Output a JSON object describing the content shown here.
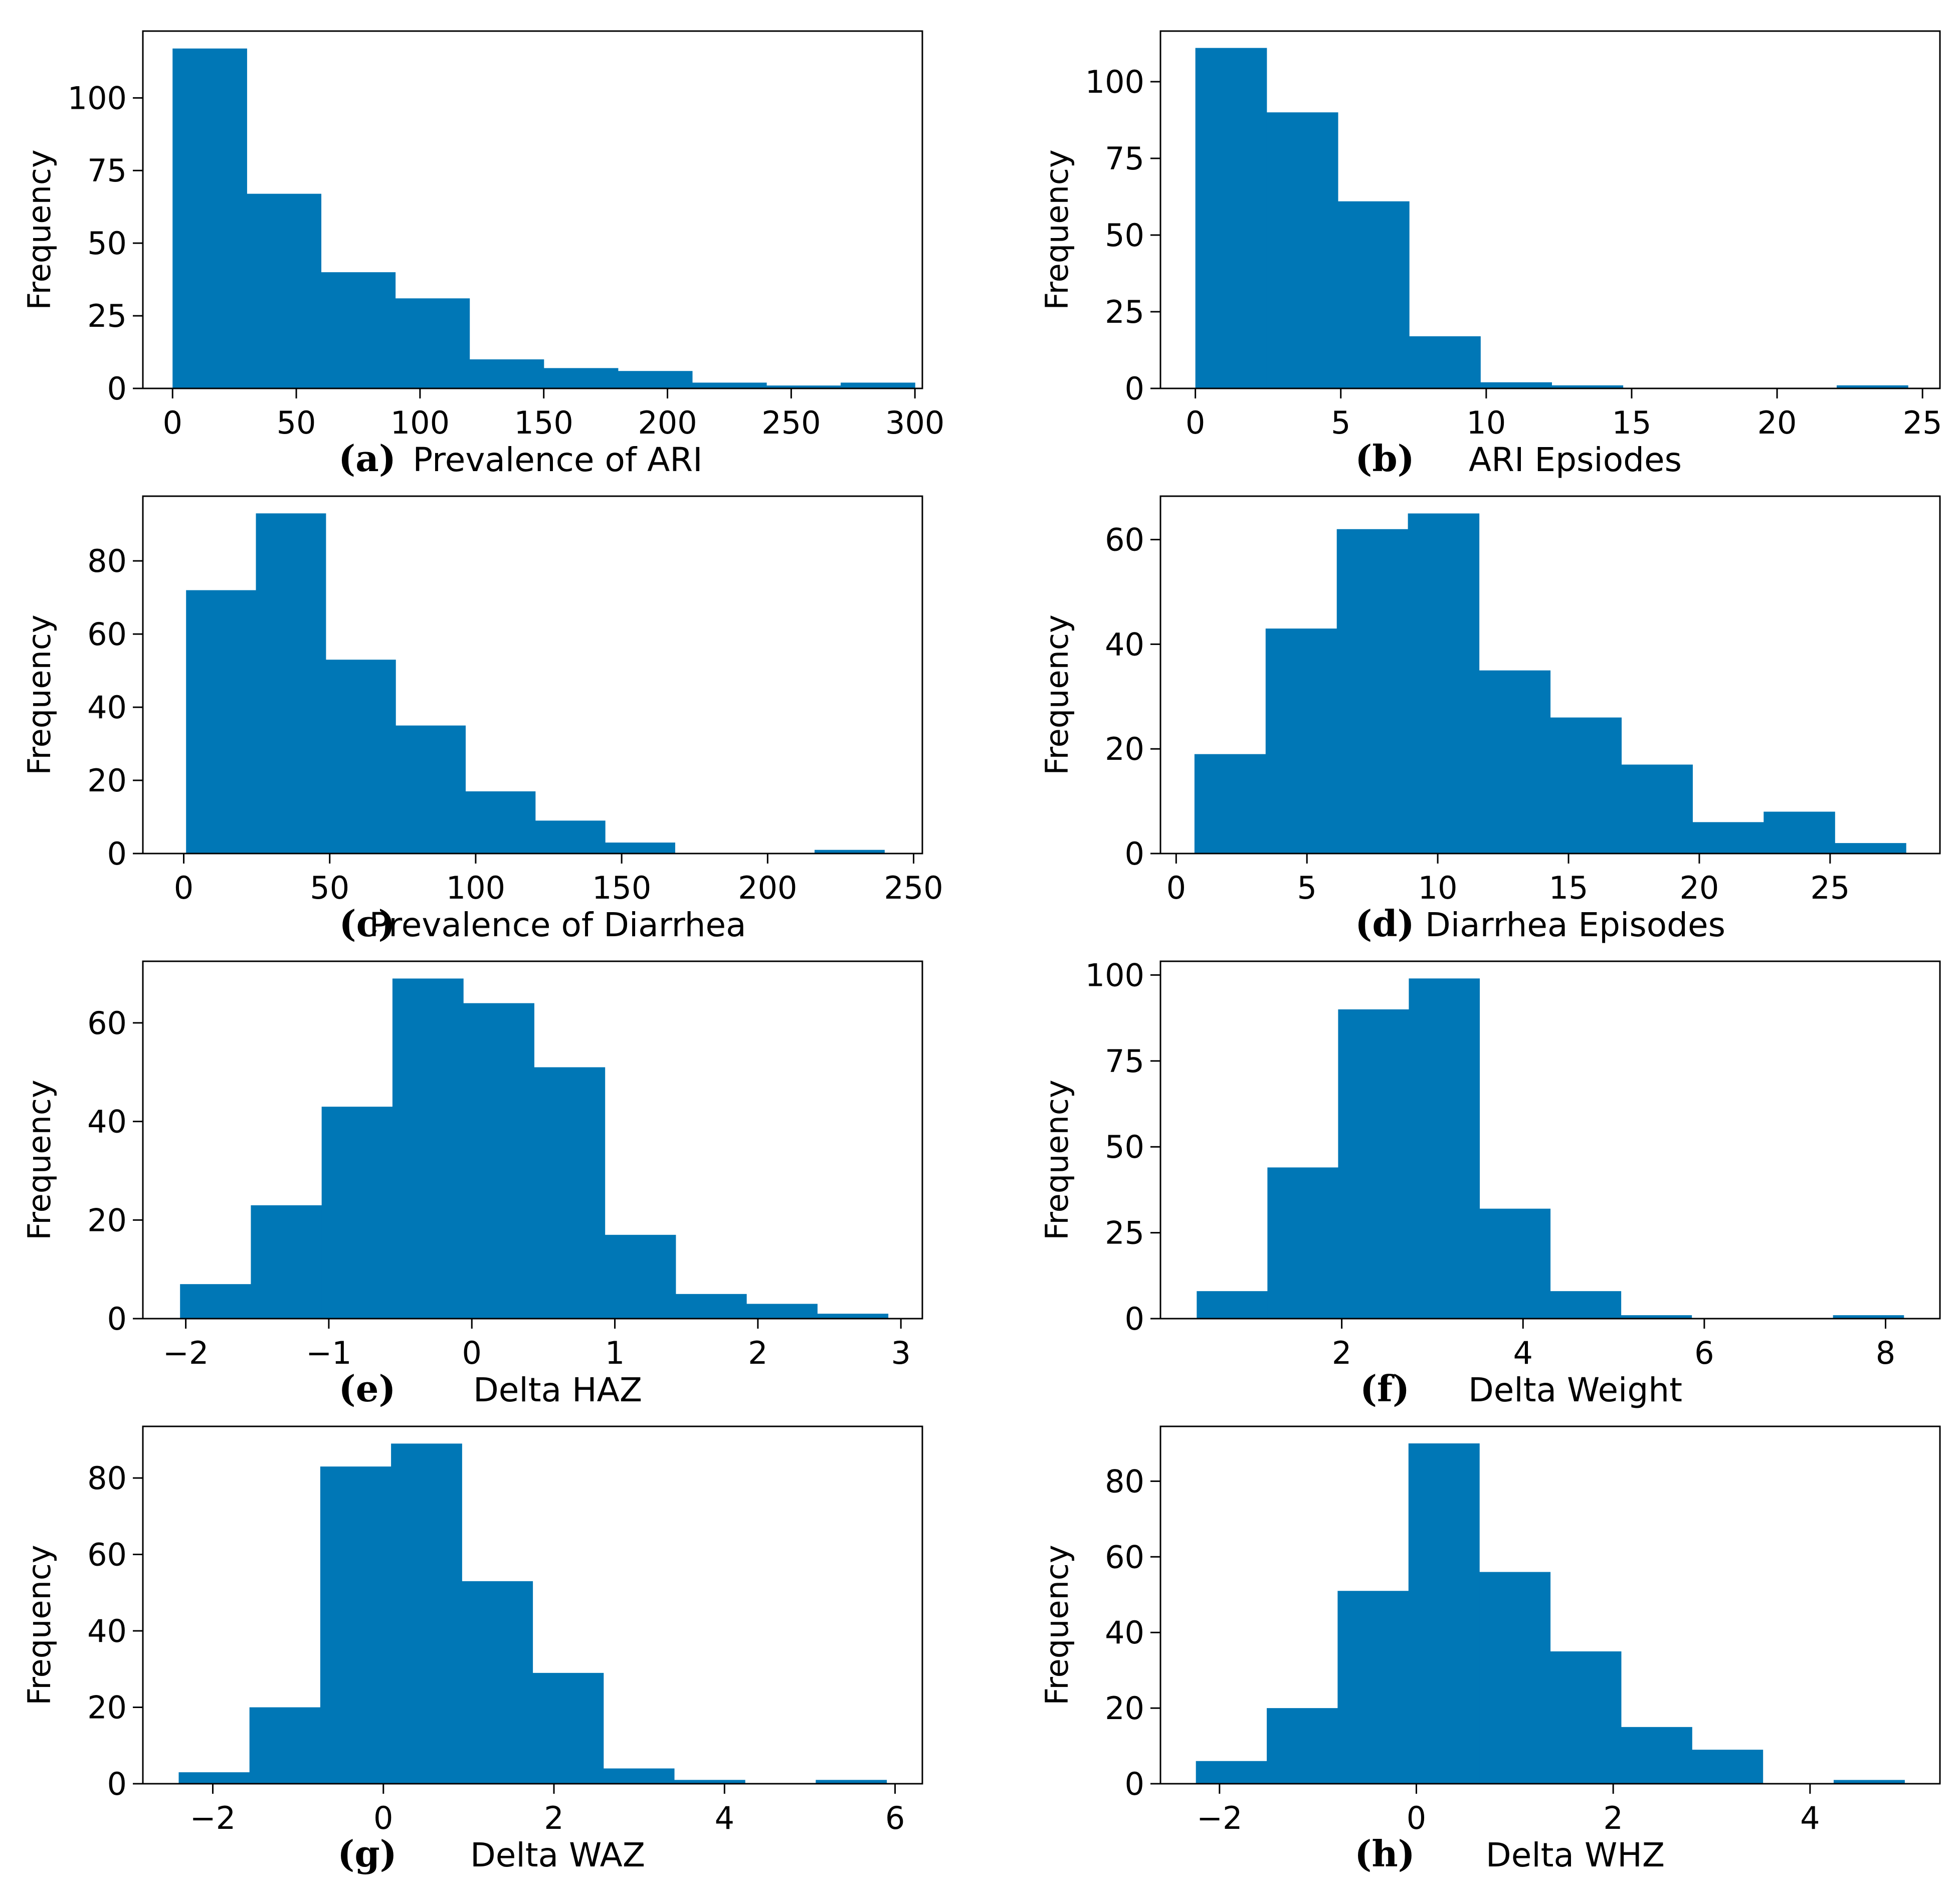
{
  "figure": {
    "bar_color": "#0077b6",
    "axis_color": "#000000"
  },
  "chart_data": [
    {
      "type": "bar",
      "panel": "(a)",
      "xlabel": "Prevalence of ARI",
      "ylabel": "Frequency",
      "bin_edges": [
        0,
        30,
        60,
        90,
        120,
        150,
        180,
        210,
        240,
        270,
        300
      ],
      "values": [
        117,
        67,
        40,
        31,
        10,
        7,
        6,
        2,
        1,
        2
      ],
      "xlim": [
        -12,
        303
      ],
      "ylim": [
        0,
        123
      ],
      "xticks": [
        0,
        50,
        100,
        150,
        200,
        250,
        300
      ],
      "xtick_labels": [
        "0",
        "50",
        "100",
        "150",
        "200",
        "250",
        "300"
      ],
      "yticks": [
        0,
        25,
        50,
        75,
        100
      ],
      "ytick_labels": [
        "0",
        "25",
        "50",
        "75",
        "100"
      ]
    },
    {
      "type": "bar",
      "panel": "(b)",
      "xlabel": "ARI Epsiodes",
      "ylabel": "Frequency",
      "bin_edges": [
        0,
        2.45,
        4.9,
        7.35,
        9.8,
        12.25,
        14.7,
        17.15,
        19.6,
        22.05,
        24.5
      ],
      "values": [
        111,
        90,
        61,
        17,
        2,
        1,
        0,
        0,
        0,
        1
      ],
      "xlim": [
        -1.2,
        25.6
      ],
      "ylim": [
        0,
        116.5
      ],
      "xticks": [
        0,
        5,
        10,
        15,
        20,
        25
      ],
      "xtick_labels": [
        "0",
        "5",
        "10",
        "15",
        "20",
        "25"
      ],
      "yticks": [
        0,
        25,
        50,
        75,
        100
      ],
      "ytick_labels": [
        "0",
        "25",
        "50",
        "75",
        "100"
      ]
    },
    {
      "type": "bar",
      "panel": "(c)",
      "xlabel": "Prevalence of Diarrhea",
      "ylabel": "Frequency",
      "bin_edges": [
        0.8,
        24.72,
        48.64,
        72.56,
        96.48,
        120.4,
        144.32,
        168.24,
        192.16,
        216.08,
        240
      ],
      "values": [
        72,
        93,
        53,
        35,
        17,
        9,
        3,
        0,
        0,
        1
      ],
      "xlim": [
        -14,
        253
      ],
      "ylim": [
        0,
        97.7
      ],
      "xticks": [
        0,
        50,
        100,
        150,
        200,
        250
      ],
      "xtick_labels": [
        "0",
        "50",
        "100",
        "150",
        "200",
        "250"
      ],
      "yticks": [
        0,
        20,
        40,
        60,
        80
      ],
      "ytick_labels": [
        "0",
        "20",
        "40",
        "60",
        "80"
      ]
    },
    {
      "type": "bar",
      "panel": "(d)",
      "xlabel": "Diarrhea Episodes",
      "ylabel": "Frequency",
      "bin_edges": [
        0.7,
        3.42,
        6.14,
        8.86,
        11.58,
        14.3,
        17.02,
        19.74,
        22.46,
        25.18,
        27.9
      ],
      "values": [
        19,
        43,
        62,
        65,
        35,
        26,
        17,
        6,
        8,
        2
      ],
      "xlim": [
        -0.6,
        29.2
      ],
      "ylim": [
        0,
        68.3
      ],
      "xticks": [
        0,
        5,
        10,
        15,
        20,
        25
      ],
      "xtick_labels": [
        "0",
        "5",
        "10",
        "15",
        "20",
        "25"
      ],
      "yticks": [
        0,
        20,
        40,
        60
      ],
      "ytick_labels": [
        "0",
        "20",
        "40",
        "60"
      ]
    },
    {
      "type": "bar",
      "panel": "(e)",
      "xlabel": "Delta HAZ",
      "ylabel": "Frequency",
      "bin_edges": [
        -2.04,
        -1.545,
        -1.05,
        -0.555,
        -0.06,
        0.435,
        0.93,
        1.425,
        1.92,
        2.415,
        2.91
      ],
      "values": [
        7,
        23,
        43,
        69,
        64,
        51,
        17,
        5,
        3,
        1
      ],
      "xlim": [
        -2.3,
        3.15
      ],
      "ylim": [
        0,
        72.5
      ],
      "xticks": [
        -2,
        -1,
        0,
        1,
        2,
        3
      ],
      "xtick_labels": [
        "−2",
        "−1",
        "0",
        "1",
        "2",
        "3"
      ],
      "yticks": [
        0,
        20,
        40,
        60
      ],
      "ytick_labels": [
        "0",
        "20",
        "40",
        "60"
      ]
    },
    {
      "type": "bar",
      "panel": "(f)",
      "xlabel": "Delta Weight",
      "ylabel": "Frequency",
      "bin_edges": [
        0.4,
        1.18,
        1.96,
        2.74,
        3.52,
        4.3,
        5.08,
        5.86,
        6.64,
        7.42,
        8.2
      ],
      "values": [
        8,
        44,
        90,
        99,
        32,
        8,
        1,
        0,
        0,
        1
      ],
      "xlim": [
        0.0,
        8.6
      ],
      "ylim": [
        0,
        104
      ],
      "xticks": [
        2,
        4,
        6,
        8
      ],
      "xtick_labels": [
        "2",
        "4",
        "6",
        "8"
      ],
      "yticks": [
        0,
        25,
        50,
        75,
        100
      ],
      "ytick_labels": [
        "0",
        "25",
        "50",
        "75",
        "100"
      ]
    },
    {
      "type": "bar",
      "panel": "(g)",
      "xlabel": "Delta WAZ",
      "ylabel": "Frequency",
      "bin_edges": [
        -2.4,
        -1.57,
        -0.74,
        0.09,
        0.92,
        1.75,
        2.58,
        3.41,
        4.24,
        5.07,
        5.9
      ],
      "values": [
        3,
        20,
        83,
        89,
        53,
        29,
        4,
        1,
        0,
        1
      ],
      "xlim": [
        -2.82,
        6.32
      ],
      "ylim": [
        0,
        93.5
      ],
      "xticks": [
        -2,
        0,
        2,
        4,
        6
      ],
      "xtick_labels": [
        "−2",
        "0",
        "2",
        "4",
        "6"
      ],
      "yticks": [
        0,
        20,
        40,
        60,
        80
      ],
      "ytick_labels": [
        "0",
        "20",
        "40",
        "60",
        "80"
      ]
    },
    {
      "type": "bar",
      "panel": "(h)",
      "xlabel": "Delta WHZ",
      "ylabel": "Frequency",
      "bin_edges": [
        -2.24,
        -1.52,
        -0.8,
        -0.08,
        0.64,
        1.36,
        2.08,
        2.8,
        3.52,
        4.24,
        4.96
      ],
      "values": [
        6,
        20,
        51,
        90,
        56,
        35,
        15,
        9,
        0,
        1
      ],
      "xlim": [
        -2.6,
        5.32
      ],
      "ylim": [
        0,
        94.5
      ],
      "xticks": [
        -2,
        0,
        2,
        4
      ],
      "xtick_labels": [
        "−2",
        "0",
        "2",
        "4"
      ],
      "yticks": [
        0,
        20,
        40,
        60,
        80
      ],
      "ytick_labels": [
        "0",
        "20",
        "40",
        "60",
        "80"
      ]
    }
  ]
}
